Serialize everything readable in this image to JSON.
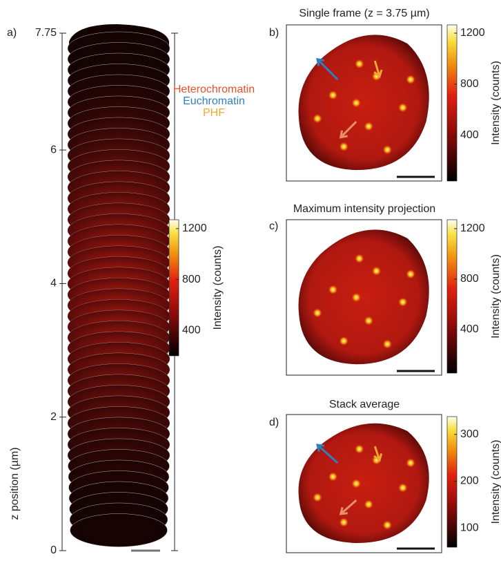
{
  "panel_a": {
    "label": "a)",
    "axis_label": "z position (µm)",
    "zlim": [
      0,
      7.75
    ],
    "zticks": [
      0,
      2,
      4,
      6,
      7.75
    ],
    "legend": [
      {
        "name": "Heterochromatin",
        "color": "#e8502a"
      },
      {
        "name": "Euchromatin",
        "color": "#2f7fc1"
      },
      {
        "name": "PHF",
        "color": "#f0a830"
      }
    ],
    "colorbar": {
      "label": "Intensity (counts)",
      "clim": [
        200,
        1270
      ],
      "ticks": [
        400,
        800,
        1200
      ]
    }
  },
  "panel_b": {
    "label": "b)",
    "title": "Single frame (z = 3.75 µm)",
    "colorbar": {
      "label": "Intensity (counts)",
      "clim": [
        40,
        1265
      ],
      "ticks": [
        400,
        800,
        1200
      ]
    }
  },
  "panel_c": {
    "label": "c)",
    "title": "Maximum intensity projection",
    "colorbar": {
      "label": "Intensity (counts)",
      "clim": [
        55,
        1271
      ],
      "ticks": [
        400,
        800,
        1200
      ]
    }
  },
  "panel_d": {
    "label": "d)",
    "title": "Stack average",
    "colorbar": {
      "label": "Intensity (counts)",
      "clim": [
        59,
        338
      ],
      "ticks": [
        100,
        200,
        300
      ]
    }
  }
}
